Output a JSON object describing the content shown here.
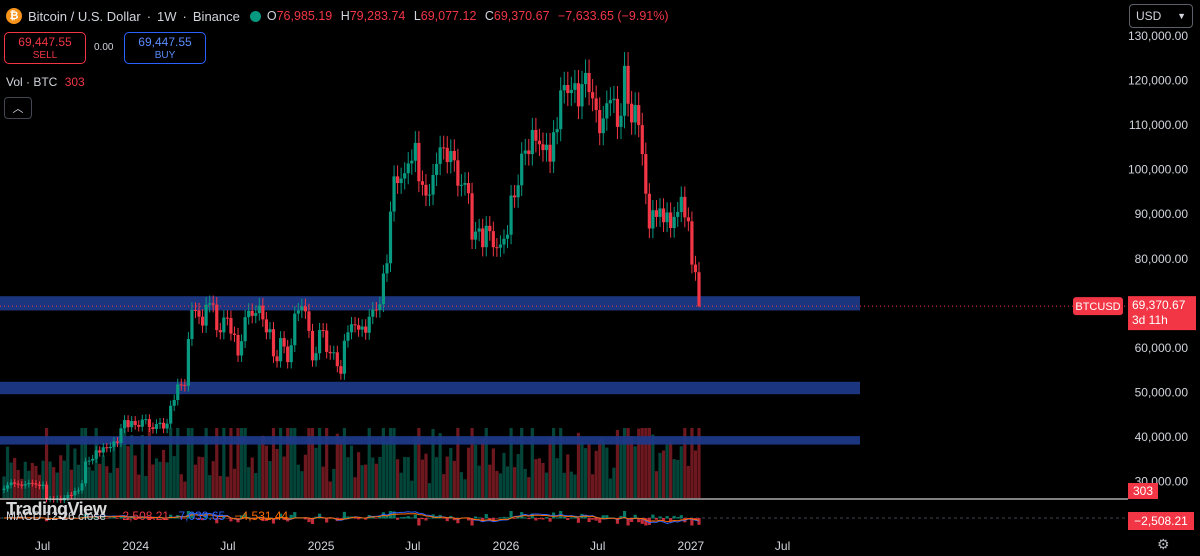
{
  "header": {
    "symbol": "Bitcoin / U.S. Dollar",
    "interval": "1W",
    "exchange": "Binance",
    "open_key": "O",
    "open": "76,985.19",
    "high_key": "H",
    "high": "79,283.74",
    "low_key": "L",
    "low": "69,077.12",
    "close_key": "C",
    "close": "69,370.67",
    "change": "−7,633.65 (−9.91%)"
  },
  "trade": {
    "sell_price": "69,447.55",
    "sell_label": "SELL",
    "spread": "0.00",
    "buy_price": "69,447.55",
    "buy_label": "BUY"
  },
  "volume_legend": {
    "label": "Vol · BTC",
    "value": "303"
  },
  "currency": "USD",
  "branding": "TradingView",
  "macd": {
    "label": "MACD 12 26 close",
    "macd": "−2,508.21",
    "signal": "7,039.65",
    "hist": "−4,531.44"
  },
  "colors": {
    "up": "#089981",
    "down": "#f23645",
    "zone": "#1e3a8a",
    "bg": "#000000"
  },
  "chart_data": {
    "type": "candlestick",
    "symbol_tag": "BTCUSD",
    "last_price": "69,370.67",
    "countdown": "3d 11h",
    "volume_tag": "303",
    "macd_tag": "−2,508.21",
    "ylim": [
      24000,
      132000
    ],
    "yticks": [
      30000,
      40000,
      50000,
      60000,
      70000,
      80000,
      90000,
      100000,
      110000,
      120000,
      130000
    ],
    "ytick_labels": [
      "30,000.00",
      "40,000.00",
      "50,000.00",
      "60,000.00",
      "",
      "80,000.00",
      "90,000.00",
      "100,000.00",
      "110,000.00",
      "120,000.00",
      "130,000.00"
    ],
    "xticks": [
      {
        "label": "Jul",
        "date": "2023-07"
      },
      {
        "label": "2024",
        "date": "2024-01"
      },
      {
        "label": "Jul",
        "date": "2024-07"
      },
      {
        "label": "2025",
        "date": "2025-01"
      },
      {
        "label": "Jul",
        "date": "2025-07"
      },
      {
        "label": "2026",
        "date": "2026-01"
      },
      {
        "label": "Jul",
        "date": "2026-07"
      },
      {
        "label": "2027",
        "date": "2027-01"
      },
      {
        "label": "Jul",
        "date": "2027-07"
      }
    ],
    "zones": [
      [
        68400,
        71600
      ],
      [
        49600,
        52400
      ],
      [
        38300,
        40200
      ]
    ],
    "closes": [
      28400,
      29200,
      29800,
      29500,
      29300,
      29100,
      29400,
      29700,
      29600,
      29300,
      29000,
      29300,
      26000,
      26100,
      25900,
      26200,
      25800,
      26300,
      27000,
      26900,
      27900,
      28000,
      29600,
      34500,
      34700,
      35100,
      37000,
      36500,
      37700,
      37500,
      37800,
      39000,
      38700,
      41900,
      43800,
      42200,
      43600,
      42700,
      42300,
      43900,
      44000,
      42200,
      41800,
      42900,
      43200,
      41900,
      43000,
      47000,
      48300,
      51800,
      51700,
      51500,
      62000,
      68500,
      68400,
      67000,
      65000,
      69700,
      70000,
      69700,
      64000,
      63500,
      66800,
      66700,
      63200,
      62900,
      58300,
      61500,
      66900,
      68300,
      67200,
      67800,
      69500,
      66400,
      63500,
      64200,
      58100,
      57000,
      62200,
      60300,
      56800,
      60600,
      67700,
      68400,
      69300,
      68200,
      63800,
      57200,
      58800,
      64000,
      63900,
      59100,
      58800,
      59000,
      55900,
      54200,
      61600,
      63500,
      65300,
      65100,
      64100,
      64800,
      63400,
      67000,
      68600,
      68500,
      69800,
      76700,
      79000,
      90600,
      98500,
      97000,
      98000,
      99200,
      101400,
      102000,
      106000,
      97400,
      96600,
      94200,
      94400,
      98800,
      101300,
      105000,
      104900,
      101700,
      104200,
      102100,
      96400,
      96600,
      97000,
      94700,
      84300,
      86100,
      86800,
      82600,
      87400,
      86200,
      82600,
      82500,
      83200,
      84500,
      85400,
      94200,
      93800,
      96500,
      103600,
      104300,
      103500,
      108900,
      106500,
      105700,
      104400,
      105600,
      101800,
      108400,
      109100,
      117800,
      119000,
      117200,
      117900,
      119400,
      114200,
      119200,
      121700,
      117400,
      116000,
      113400,
      108200,
      111500,
      114900,
      115600,
      115900,
      109600,
      112100,
      123300,
      114800,
      110600,
      114500,
      110000,
      103500,
      94600,
      86800,
      90900,
      89400,
      91300,
      88200,
      90400,
      86900,
      89400,
      90500,
      93900,
      89300,
      88400,
      78700,
      76990,
      69371
    ],
    "opens": [
      28100,
      28400,
      29200,
      29800,
      29500,
      29300,
      29100,
      29400,
      29700,
      29600,
      29300,
      29000,
      29300,
      26000,
      26100,
      25900,
      26200,
      25800,
      26300,
      27000,
      26900,
      27900,
      28000,
      29600,
      34500,
      34700,
      35100,
      37000,
      36500,
      37700,
      37500,
      37800,
      39000,
      38700,
      41900,
      43800,
      42200,
      43600,
      42700,
      42300,
      43900,
      44000,
      42200,
      41800,
      42900,
      43200,
      41900,
      43000,
      47000,
      48300,
      51800,
      51700,
      51500,
      62000,
      68500,
      68400,
      67000,
      65000,
      69700,
      70000,
      69700,
      64000,
      63500,
      66800,
      66700,
      63200,
      62900,
      58300,
      61500,
      66900,
      68300,
      67200,
      67800,
      69500,
      66400,
      63500,
      64200,
      58100,
      57000,
      62200,
      60300,
      56800,
      60600,
      67700,
      68400,
      69300,
      68200,
      63800,
      57200,
      58800,
      64000,
      63900,
      59100,
      58800,
      59000,
      55900,
      54200,
      61600,
      63500,
      65300,
      65100,
      64100,
      64800,
      63400,
      67000,
      68600,
      68500,
      69800,
      76700,
      79000,
      90600,
      98500,
      97000,
      98000,
      99200,
      101400,
      102000,
      106000,
      97400,
      96600,
      94200,
      94400,
      98800,
      101300,
      105000,
      104900,
      101700,
      104200,
      102100,
      96400,
      96600,
      97000,
      94700,
      84300,
      86100,
      86800,
      82600,
      87400,
      86200,
      82600,
      82500,
      83200,
      84500,
      85400,
      94200,
      93800,
      96500,
      103600,
      104300,
      103500,
      108900,
      106500,
      105700,
      104400,
      105600,
      101800,
      108400,
      109100,
      117800,
      119000,
      117200,
      117900,
      119400,
      114200,
      119200,
      121700,
      117400,
      116000,
      113400,
      108200,
      111500,
      114900,
      115600,
      115900,
      109600,
      112100,
      123300,
      114800,
      110600,
      114500,
      110000,
      103500,
      94600,
      86800,
      90900,
      89400,
      91300,
      88200,
      90400,
      86900,
      89400,
      90500,
      93900,
      89300,
      88400,
      78700,
      76985
    ],
    "last_high": 79284,
    "last_low": 69077
  }
}
